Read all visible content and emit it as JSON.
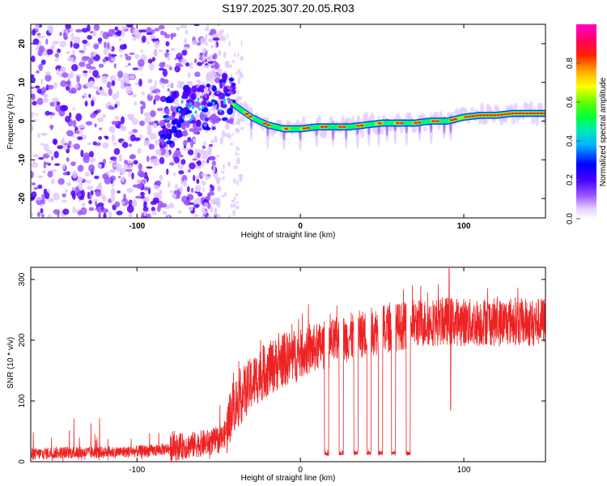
{
  "chart_data": [
    {
      "type": "heatmap",
      "title": "S197.2025.307.20.05.R03",
      "xlabel": "Height of straight line (km)",
      "ylabel": "Frequency (Hz)",
      "xlim": [
        -165,
        150
      ],
      "ylim": [
        -25,
        25
      ],
      "xticks": [
        -100,
        0,
        100
      ],
      "yticks": [
        -20,
        -10,
        0,
        10,
        20
      ],
      "grid": false,
      "colorbar": {
        "label": "Normalized spectral amplitude",
        "range": [
          0.0,
          1.0
        ],
        "ticks": [
          0.0,
          0.2,
          0.4,
          0.6,
          0.8
        ],
        "colormap": [
          "#ffffff",
          "#e0c8ff",
          "#9a55ff",
          "#5500ff",
          "#0000ff",
          "#00c8ff",
          "#00e6aa",
          "#00ff00",
          "#ffff00",
          "#ff8800",
          "#ff0000",
          "#ff00aa"
        ]
      },
      "ridge": {
        "description": "dominant frequency versus height",
        "x": [
          -85,
          -75,
          -65,
          -55,
          -45,
          -40,
          -30,
          -20,
          -10,
          0,
          10,
          20,
          30,
          40,
          50,
          60,
          70,
          80,
          90,
          100,
          110,
          120,
          130,
          140,
          150
        ],
        "y": [
          -1,
          2,
          3,
          4,
          6,
          4,
          1,
          -1,
          -2,
          -2,
          -1.5,
          -1.5,
          -1.5,
          -1,
          -0.5,
          -0.5,
          -0.5,
          0,
          0,
          1,
          1.5,
          1.5,
          2,
          2,
          2
        ]
      }
    },
    {
      "type": "line",
      "title": "",
      "xlabel": "Height of straight line (km)",
      "ylabel": "SNR (10 * v/v)",
      "xlim": [
        -165,
        150
      ],
      "ylim": [
        0,
        320
      ],
      "xticks": [
        -100,
        0,
        100
      ],
      "yticks": [
        0,
        100,
        200,
        300
      ],
      "grid": false,
      "series": [
        {
          "name": "SNR",
          "color": "#ee2222",
          "x": [
            -165,
            -150,
            -130,
            -110,
            -90,
            -75,
            -65,
            -55,
            -48,
            -45,
            -42,
            -38,
            -35,
            -30,
            -25,
            -20,
            -15,
            -10,
            -5,
            0,
            5,
            10,
            15,
            20,
            25,
            30,
            35,
            40,
            45,
            50,
            55,
            60,
            65,
            70,
            75,
            80,
            85,
            90,
            95,
            100,
            105,
            110,
            115,
            120,
            125,
            130,
            135,
            140,
            145,
            150
          ],
          "y": [
            12,
            15,
            15,
            16,
            18,
            24,
            28,
            32,
            38,
            52,
            88,
            100,
            112,
            128,
            142,
            152,
            160,
            168,
            172,
            178,
            182,
            188,
            192,
            196,
            200,
            205,
            208,
            212,
            215,
            218,
            220,
            222,
            225,
            228,
            228,
            230,
            230,
            232,
            230,
            230,
            228,
            230,
            232,
            228,
            230,
            232,
            230,
            228,
            230,
            232
          ]
        }
      ],
      "dropouts": {
        "description": "narrow gaps where SNR falls to about 10",
        "x": [
          16,
          25,
          34,
          42,
          49,
          57,
          66
        ],
        "y": [
          10,
          10,
          10,
          10,
          10,
          10,
          10
        ]
      },
      "spikes": {
        "x": [
          91,
          92
        ],
        "y": [
          318,
          85
        ]
      }
    }
  ]
}
